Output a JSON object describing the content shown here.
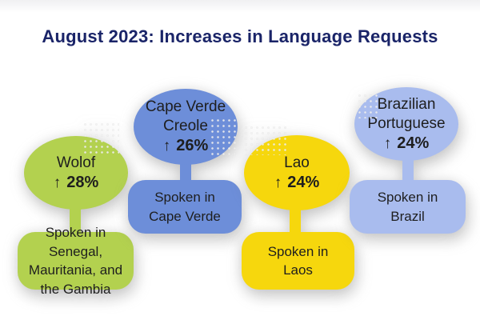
{
  "title": "August 2023: Increases in Language Requests",
  "colors": {
    "title": "#1a2468",
    "text": "#1e1e1e",
    "wolof_green": "#b3d14f",
    "cape_verde_blue": "#6d8ed9",
    "lao_yellow": "#f6d70d",
    "brazilian_periwinkle": "#a9bcee"
  },
  "balloons": [
    {
      "id": "wolof",
      "color": "#b3d14f",
      "language": "Wolof",
      "language_lines": [
        "Wolof"
      ],
      "arrow": "↑",
      "increase": "28%",
      "region": "Spoken in Senegal, Mauritania, and the Gambia",
      "region_lines": [
        "Spoken in Senegal,",
        "Mauritania, and",
        "the Gambia"
      ]
    },
    {
      "id": "cape-verde-creole",
      "color": "#6d8ed9",
      "language": "Cape Verde Creole",
      "language_lines": [
        "Cape Verde",
        "Creole"
      ],
      "arrow": "↑",
      "increase": "26%",
      "region": "Spoken in Cape Verde",
      "region_lines": [
        "Spoken in",
        "Cape Verde"
      ]
    },
    {
      "id": "lao",
      "color": "#f6d70d",
      "language": "Lao",
      "language_lines": [
        "Lao"
      ],
      "arrow": "↑",
      "increase": "24%",
      "region": "Spoken in Laos",
      "region_lines": [
        "Spoken in",
        "Laos"
      ]
    },
    {
      "id": "brazilian-portuguese",
      "color": "#a9bcee",
      "language": "Brazilian Portuguese",
      "language_lines": [
        "Brazilian",
        "Portuguese"
      ],
      "arrow": "↑",
      "increase": "24%",
      "region": "Spoken in Brazil",
      "region_lines": [
        "Spoken in",
        "Brazil"
      ]
    }
  ],
  "chart_data": {
    "type": "table",
    "title": "August 2023: Increases in Language Requests",
    "categories": [
      "Wolof",
      "Cape Verde Creole",
      "Lao",
      "Brazilian Portuguese"
    ],
    "values": [
      28,
      26,
      24,
      24
    ],
    "unit": "percent_increase",
    "annotations": [
      "Spoken in Senegal, Mauritania, and the Gambia",
      "Spoken in Cape Verde",
      "Spoken in Laos",
      "Spoken in Brazil"
    ]
  }
}
